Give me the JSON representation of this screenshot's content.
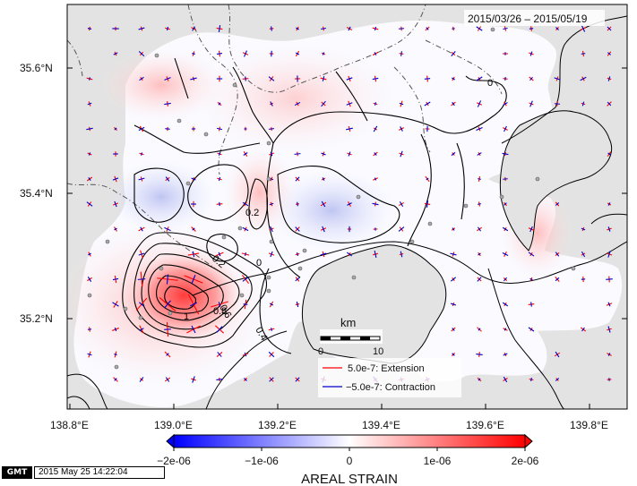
{
  "map": {
    "date_range": "2015/03/26 – 2015/05/19",
    "lat_labels": [
      "35.6°N",
      "35.4°N",
      "35.2°N"
    ],
    "lon_labels": [
      "138.8°E",
      "139.0°E",
      "139.2°E",
      "139.4°E",
      "139.6°E",
      "139.8°E"
    ],
    "contour_labels": [
      "0",
      "0.2",
      "0.2",
      "0",
      "0.6",
      "0.4",
      "0.8",
      "1"
    ],
    "scale_bar": {
      "title": "km",
      "ticks": [
        "0",
        "10"
      ]
    },
    "legend": [
      {
        "value": "5.0e-7: Extension",
        "color": "#ff0000"
      },
      {
        "value": "−5.0e-7: Contraction",
        "color": "#0000cc"
      }
    ]
  },
  "colorbar": {
    "title": "AREAL STRAIN",
    "ticks": [
      "−2e-06",
      "−1e-06",
      "0",
      "1e-06",
      "2e-06"
    ],
    "colors": {
      "negative": "#0000ff",
      "zero": "#ffffff",
      "positive": "#ff0000"
    }
  },
  "footer": {
    "logo": "GMT",
    "timestamp": "2015 May 25 14:22:04"
  }
}
